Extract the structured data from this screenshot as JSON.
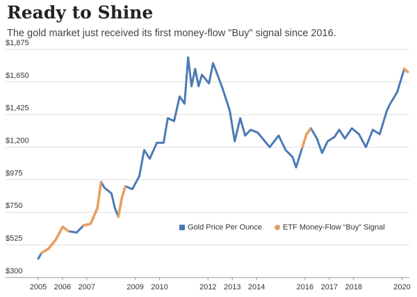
{
  "chart_data": {
    "type": "line",
    "title": "Ready to Shine",
    "subtitle": "The gold market just received its first money-flow \"Buy\" signal since 2016.",
    "x": [
      2005.0,
      2005.14,
      2005.43,
      2005.72,
      2006.01,
      2006.24,
      2006.58,
      2006.87,
      2007.16,
      2007.44,
      2007.59,
      2007.73,
      2008.02,
      2008.16,
      2008.3,
      2008.45,
      2008.59,
      2008.88,
      2009.17,
      2009.37,
      2009.6,
      2009.89,
      2010.17,
      2010.34,
      2010.6,
      2010.83,
      2011.03,
      2011.18,
      2011.32,
      2011.47,
      2011.61,
      2011.75,
      2012.04,
      2012.21,
      2012.39,
      2012.61,
      2012.9,
      2013.1,
      2013.33,
      2013.53,
      2013.76,
      2014.05,
      2014.25,
      2014.54,
      2014.91,
      2015.2,
      2015.49,
      2015.63,
      2015.89,
      2016.06,
      2016.24,
      2016.49,
      2016.7,
      2016.93,
      2017.21,
      2017.41,
      2017.64,
      2017.93,
      2018.22,
      2018.51,
      2018.79,
      2019.08,
      2019.37,
      2019.51,
      2019.8,
      2020.09,
      2020.23
    ],
    "series": [
      {
        "name": "Gold Price Per Ounce",
        "color": "#4a7ab5",
        "values": [
          430,
          470,
          500,
          560,
          650,
          620,
          610,
          660,
          670,
          780,
          960,
          920,
          880,
          780,
          720,
          850,
          930,
          910,
          1000,
          1180,
          1120,
          1230,
          1230,
          1400,
          1380,
          1550,
          1500,
          1820,
          1620,
          1740,
          1620,
          1700,
          1640,
          1780,
          1700,
          1600,
          1450,
          1240,
          1400,
          1280,
          1320,
          1300,
          1260,
          1200,
          1280,
          1180,
          1130,
          1060,
          1200,
          1290,
          1330,
          1260,
          1160,
          1240,
          1270,
          1320,
          1260,
          1330,
          1290,
          1200,
          1320,
          1290,
          1450,
          1500,
          1580,
          1740,
          1720
        ]
      },
      {
        "name": "ETF Money-Flow “Buy” Signal",
        "color": "#e8a063",
        "values": [
          null,
          470,
          500,
          560,
          650,
          620,
          null,
          660,
          670,
          780,
          960,
          null,
          null,
          null,
          720,
          850,
          930,
          null,
          null,
          null,
          null,
          null,
          null,
          null,
          null,
          null,
          null,
          null,
          null,
          null,
          null,
          null,
          null,
          null,
          null,
          null,
          null,
          null,
          null,
          null,
          null,
          null,
          null,
          null,
          null,
          null,
          null,
          null,
          1200,
          1290,
          1330,
          null,
          null,
          null,
          null,
          null,
          null,
          null,
          null,
          null,
          null,
          null,
          null,
          null,
          null,
          1740,
          1720
        ]
      }
    ],
    "xlim": [
      2005,
      2020.3
    ],
    "xticks": [
      2005,
      2006,
      2007,
      2009,
      2010,
      2012,
      2013,
      2014,
      2016,
      2017,
      2018,
      2020
    ],
    "ylim": [
      300,
      1875
    ],
    "yticks": [
      {
        "value": 300,
        "label": "$300"
      },
      {
        "value": 525,
        "label": "$525"
      },
      {
        "value": 750,
        "label": "$750"
      },
      {
        "value": 975,
        "label": "$975"
      },
      {
        "value": 1200,
        "label": "$1,200"
      },
      {
        "value": 1425,
        "label": "$1,425"
      },
      {
        "value": 1650,
        "label": "$1,650"
      },
      {
        "value": 1875,
        "label": "$1,875"
      }
    ],
    "grid": true,
    "legend": "center"
  }
}
